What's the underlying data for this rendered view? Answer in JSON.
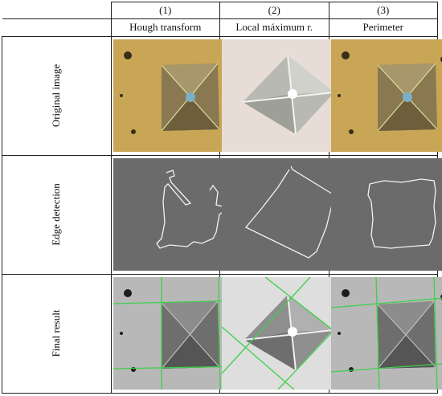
{
  "columns": [
    {
      "number": "(1)",
      "name": "Hough transform"
    },
    {
      "number": "(2)",
      "name": "Local máximum r."
    },
    {
      "number": "(3)",
      "name": "Perimeter"
    }
  ],
  "rows": [
    {
      "label": "Original image"
    },
    {
      "label": "Edge detection"
    },
    {
      "label": "Final result"
    }
  ],
  "colors": {
    "yellow_background": "#c8a656",
    "pink_background": "#e8dcd6",
    "edge_background": "#6b6b6b",
    "edge_line": "#f2f2f2",
    "detected_line": "#3fcf4a",
    "gray_background": "#b8b8b8"
  }
}
